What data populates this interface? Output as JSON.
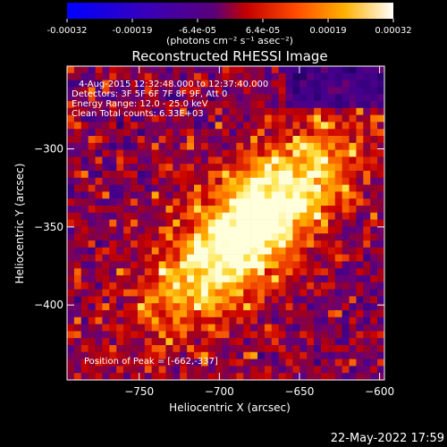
{
  "colorbar": {
    "tick_labels": [
      "-0.00032",
      "-0.00019",
      "-6.4e-05",
      "6.4e-05",
      "0.00019",
      "0.00032"
    ],
    "unit_label": "(photons cm⁻² s⁻¹ asec⁻²)",
    "range": [
      -0.00032,
      0.00032
    ]
  },
  "chart_data": {
    "type": "heatmap",
    "title": "Reconstructed RHESSI Image",
    "xlabel": "Heliocentric X (arcsec)",
    "ylabel": "Heliocentric Y (arcsec)",
    "xlim": [
      -795,
      -597
    ],
    "ylim": [
      -448,
      -247
    ],
    "xticks": [
      -750,
      -700,
      -650,
      -600
    ],
    "yticks": [
      -300,
      -350,
      -400
    ],
    "annotations": [
      "4-Aug-2015 12:32:48.000 to 12:37:40.000",
      "Detectors: 3F 5F 6F 7F 8F 9F, Att 0",
      "Energy Range: 12.0 - 25.0 keV",
      "Clean     Total counts: 6.33E+03"
    ],
    "peak_label": "Position of Peak = [-662,-337]",
    "peak": [
      -662,
      -337
    ],
    "source_center": [
      -680,
      -350
    ]
  },
  "footer": {
    "timestamp": "22-May-2022 17:59"
  }
}
